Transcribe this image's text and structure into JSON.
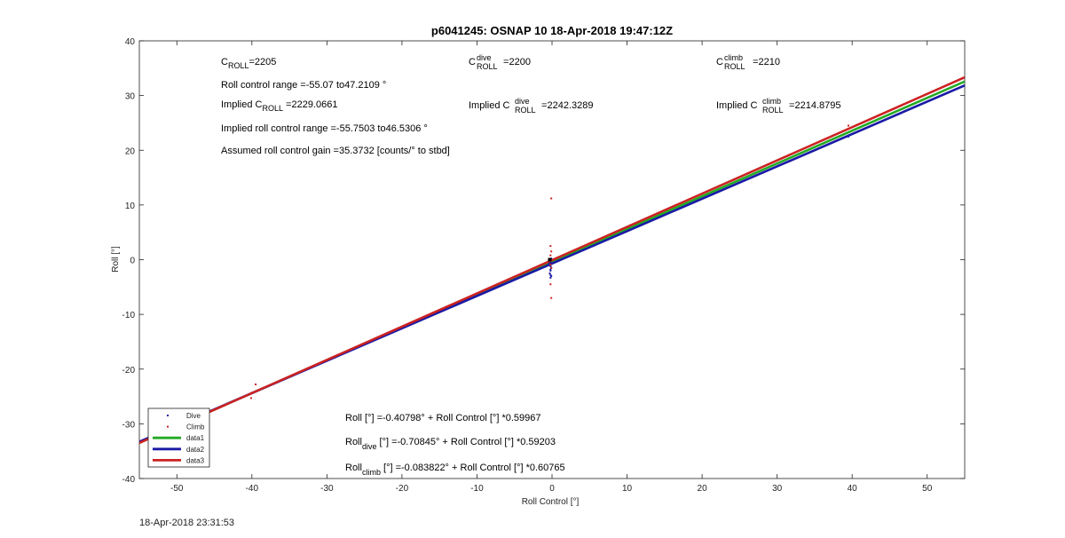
{
  "chart_data": {
    "type": "scatter",
    "title": "p6041245: OSNAP 10 18-Apr-2018 19:47:12Z",
    "xlabel": "Roll Control [°]",
    "ylabel": "Roll [°]",
    "xlim": [
      -55,
      55
    ],
    "ylim": [
      -40,
      40
    ],
    "xticks": [
      -50,
      -40,
      -30,
      -20,
      -10,
      0,
      10,
      20,
      30,
      40,
      50
    ],
    "yticks": [
      -40,
      -30,
      -20,
      -10,
      0,
      10,
      20,
      30,
      40
    ],
    "grid": false,
    "legend_position": "bottom-left",
    "series": [
      {
        "name": "Dive",
        "kind": "points",
        "color": "#1a1aa6",
        "x": [
          -0.3,
          -0.2,
          -0.1,
          -0.2,
          -0.3,
          -0.1,
          -0.2,
          -0.3,
          -0.1,
          -0.2,
          -0.2,
          -0.4,
          -0.2,
          -0.1,
          39.5
        ],
        "y": [
          -0.5,
          -1.0,
          -1.5,
          -2.0,
          -2.5,
          -3.0,
          -3.3,
          -0.2,
          0.2,
          -1.2,
          -1.8,
          -0.8,
          -2.8,
          -0.6,
          22.5
        ]
      },
      {
        "name": "Climb",
        "kind": "points",
        "color": "#cc2222",
        "x": [
          -0.1,
          -0.2,
          -0.1,
          -0.2,
          -0.3,
          -0.1,
          -0.2,
          -0.1,
          -0.2,
          -40,
          -40.1,
          -39.5,
          39.5
        ],
        "y": [
          11.2,
          2.5,
          1.5,
          0.8,
          -0.3,
          -1.5,
          -4.5,
          -7.0,
          -0.9,
          -24.3,
          -25.3,
          -22.8,
          24.5
        ]
      },
      {
        "name": "data1",
        "kind": "line",
        "color": "#22aa22",
        "intercept": -0.40798,
        "slope": 0.59967
      },
      {
        "name": "data2",
        "kind": "line",
        "color": "#1a1aa6",
        "intercept": -0.70845,
        "slope": 0.59203
      },
      {
        "name": "data3",
        "kind": "line",
        "color": "#cc2222",
        "intercept": -0.083822,
        "slope": 0.60765
      }
    ],
    "annotations": {
      "c_roll": {
        "base": "C",
        "sub": "ROLL",
        "value": "=2205"
      },
      "range": "Roll control range =-55.07 to47.2109 °",
      "implied_c": {
        "prefix": "Implied C",
        "sub": "ROLL",
        "value": " =2229.0661"
      },
      "implied_range": "Implied roll control range =-55.7503 to46.5306 °",
      "gain": "Assumed roll control gain =35.3732 [counts/° to stbd]",
      "c_dive": {
        "base": "C",
        "sup": "dive",
        "sub": "ROLL",
        "value": " =2200"
      },
      "implied_dive": {
        "prefix": "Implied C",
        "sup": "dive",
        "sub": "ROLL",
        "value": " =2242.3289"
      },
      "c_climb": {
        "base": "C",
        "sup": "climb",
        "sub": "ROLL",
        "value": " =2210"
      },
      "implied_climb": {
        "prefix": "Implied C",
        "sup": "climb",
        "sub": "ROLL",
        "value": " =2214.8795"
      },
      "fit_all": {
        "text": "Roll [°] =-0.40798° + Roll Control [°] *0.59967"
      },
      "fit_dive": {
        "base": "Roll",
        "sub": "dive",
        "text": " [°] =-0.70845° + Roll Control [°] *0.59203"
      },
      "fit_climb": {
        "base": "Roll",
        "sub": "climb",
        "text": " [°] =-0.083822° + Roll Control [°] *0.60765"
      }
    }
  },
  "footer": {
    "timestamp": "18-Apr-2018 23:31:53"
  }
}
